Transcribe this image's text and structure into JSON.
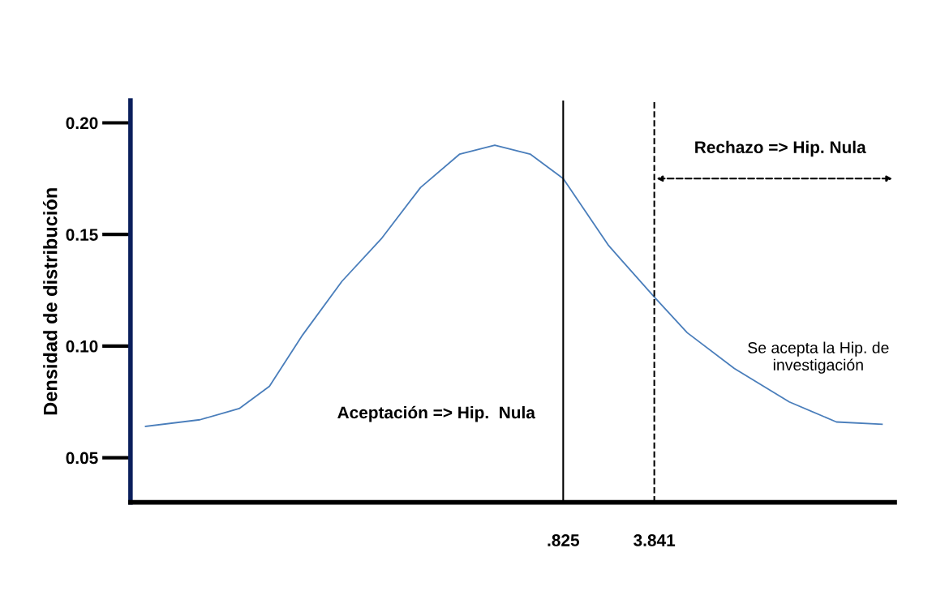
{
  "chart_data": {
    "type": "line",
    "ylabel": "Densidad de distribución",
    "x": [
      -13.0,
      -11.2,
      -9.9,
      -8.9,
      -7.8,
      -6.5,
      -5.2,
      -3.9,
      -2.6,
      -1.44,
      -0.27,
      0.825,
      2.33,
      3.841,
      4.93,
      6.49,
      8.31,
      9.87,
      11.38
    ],
    "series": [
      {
        "color": "#4a7ebb",
        "values": [
          0.064,
          0.067,
          0.072,
          0.082,
          0.105,
          0.129,
          0.148,
          0.171,
          0.186,
          0.19,
          0.186,
          0.175,
          0.145,
          0.122,
          0.106,
          0.09,
          0.075,
          0.066,
          0.065
        ]
      }
    ],
    "xlim": [
      -13.5,
      11.8
    ],
    "xticks": [
      {
        "value": 0.825,
        "label": ".825"
      },
      3.841
    ],
    "ylim": [
      0.03,
      0.21
    ],
    "yticks": [
      0.05,
      {
        "value": 0.1,
        "label": "0.10"
      },
      0.15,
      {
        "value": 0.2,
        "label": "0.20"
      }
    ],
    "ref_lines": [
      {
        "axis": "x",
        "value": 0.825,
        "color": "#000000",
        "line_style": "solid"
      },
      {
        "axis": "x",
        "value": 3.841,
        "color": "#000000",
        "line_style": "dashed"
      }
    ],
    "annotations": [
      "Rechazo => Hip. Nula",
      "Aceptación => Hip.  Nula",
      "Se acepta la Hip. de\ninvestigación"
    ],
    "grid": false,
    "legend": false,
    "marker": "none",
    "line_style": "solid"
  }
}
